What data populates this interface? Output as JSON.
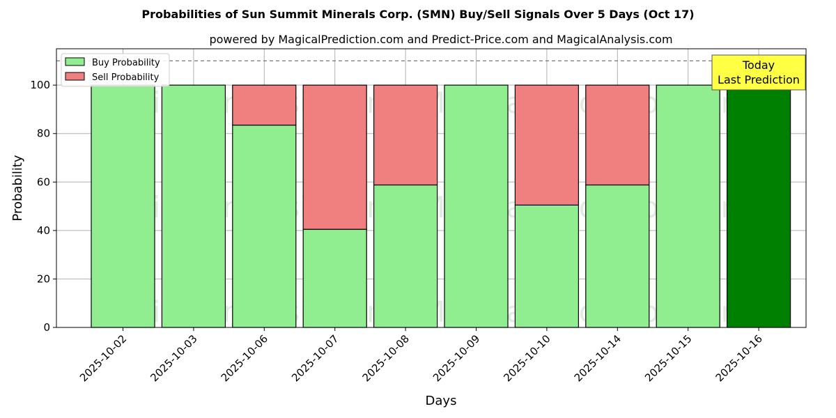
{
  "chart_data": {
    "type": "bar",
    "stacked": true,
    "title": "Probabilities of Sun Summit Minerals Corp. (SMN) Buy/Sell Signals Over 5 Days (Oct 17)",
    "subtitle": "powered by MagicalPrediction.com and Predict-Price.com and MagicalAnalysis.com",
    "xlabel": "Days",
    "ylabel": "Probability",
    "ylim": [
      0,
      115
    ],
    "yticks": [
      0,
      20,
      40,
      60,
      80,
      100
    ],
    "reference_line": 110,
    "grid": true,
    "legend_position": "top-left",
    "categories": [
      "2025-10-02",
      "2025-10-03",
      "2025-10-06",
      "2025-10-07",
      "2025-10-08",
      "2025-10-09",
      "2025-10-10",
      "2025-10-14",
      "2025-10-15",
      "2025-10-16"
    ],
    "series": [
      {
        "name": "Buy Probability",
        "color": "#90ee90",
        "values": [
          100,
          100,
          83.5,
          40.5,
          58.8,
          100,
          50.5,
          58.8,
          100,
          100
        ]
      },
      {
        "name": "Sell Probability",
        "color": "#f08080",
        "values": [
          0,
          0,
          16.5,
          59.5,
          41.2,
          0,
          49.5,
          41.2,
          0,
          0
        ]
      }
    ],
    "highlight": {
      "index": 9,
      "color": "#008000"
    },
    "annotation": {
      "lines": [
        "Today",
        "Last Prediction"
      ],
      "background": "#ffff44"
    },
    "watermarks": [
      "MagicalAnalysis.com",
      "MagicalPrediction.com"
    ]
  }
}
